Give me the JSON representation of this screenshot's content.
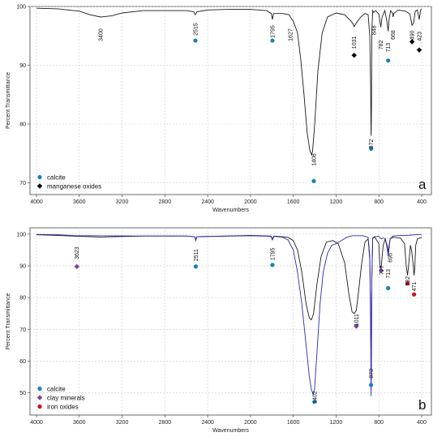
{
  "colors": {
    "calcite": "#1a7fc1",
    "manganese": "#000000",
    "clay": "#7b3fa0",
    "iron": "#c8141e",
    "curve_black": "#1a1a1a",
    "curve_blue": "#2a2ab0",
    "grid": "#c9c9c9"
  },
  "chart_data": [
    {
      "type": "line",
      "panel_label": "a",
      "xlabel": "Wavenumbers",
      "ylabel": "Percent Transmittance",
      "xlim": [
        4000,
        400
      ],
      "ylim": [
        68,
        100
      ],
      "x_reversed": true,
      "grid": true,
      "xticks": [
        "4000",
        "3600",
        "3200",
        "2800",
        "2400",
        "2000",
        "1600",
        "1200",
        "800",
        "400"
      ],
      "yticks": [
        "70",
        "80",
        "90",
        "100"
      ],
      "series": [
        {
          "color": "#1a1a1a",
          "points": [
            [
              4000,
              99.7
            ],
            [
              3800,
              99.6
            ],
            [
              3600,
              99.2
            ],
            [
              3500,
              98.6
            ],
            [
              3400,
              98.2
            ],
            [
              3300,
              98.4
            ],
            [
              3200,
              98.9
            ],
            [
              3000,
              99.3
            ],
            [
              2800,
              99.3
            ],
            [
              2600,
              99.3
            ],
            [
              2530,
              99.1
            ],
            [
              2515,
              98.6
            ],
            [
              2500,
              99.1
            ],
            [
              2400,
              99.4
            ],
            [
              2200,
              99.5
            ],
            [
              2000,
              99.5
            ],
            [
              1850,
              99.3
            ],
            [
              1805,
              98.8
            ],
            [
              1795,
              97.8
            ],
            [
              1785,
              98.8
            ],
            [
              1700,
              98.8
            ],
            [
              1640,
              98.6
            ],
            [
              1627,
              98.2
            ],
            [
              1600,
              97.5
            ],
            [
              1560,
              95.5
            ],
            [
              1530,
              91
            ],
            [
              1500,
              85
            ],
            [
              1470,
              78.5
            ],
            [
              1445,
              75.5
            ],
            [
              1430,
              74.8
            ],
            [
              1420,
              75.3
            ],
            [
              1400,
              80
            ],
            [
              1370,
              89
            ],
            [
              1330,
              95.5
            ],
            [
              1280,
              98.2
            ],
            [
              1200,
              98.9
            ],
            [
              1120,
              98.6
            ],
            [
              1060,
              97.5
            ],
            [
              1040,
              97
            ],
            [
              1031,
              96.6
            ],
            [
              1010,
              97.2
            ],
            [
              970,
              98.2
            ],
            [
              930,
              98.8
            ],
            [
              900,
              98.6
            ],
            [
              885,
              95
            ],
            [
              877,
              86
            ],
            [
              874,
              79
            ],
            [
              872,
              78
            ],
            [
              869,
              83
            ],
            [
              865,
              96
            ],
            [
              858,
              99.3
            ],
            [
              848,
              99
            ],
            [
              830,
              99.3
            ],
            [
              800,
              98.7
            ],
            [
              782,
              96.5
            ],
            [
              770,
              98.2
            ],
            [
              745,
              99.3
            ],
            [
              725,
              97.5
            ],
            [
              713,
              95.8
            ],
            [
              705,
              97.8
            ],
            [
              690,
              99.3
            ],
            [
              670,
              98.8
            ],
            [
              668,
              98.2
            ],
            [
              660,
              98.8
            ],
            [
              620,
              99.4
            ],
            [
              550,
              99.2
            ],
            [
              510,
              98.7
            ],
            [
              490,
              96.8
            ],
            [
              475,
              97.2
            ],
            [
              460,
              99.2
            ],
            [
              440,
              99.4
            ],
            [
              423,
              97.8
            ],
            [
              410,
              99.4
            ],
            [
              400,
              99.6
            ]
          ]
        }
      ],
      "peaks": [
        {
          "label": "3400",
          "x": 3400
        },
        {
          "label": "2515",
          "x": 2515
        },
        {
          "label": "1795",
          "x": 1795
        },
        {
          "label": "1627",
          "x": 1627
        },
        {
          "label": "1408",
          "x": 1408
        },
        {
          "label": "1031",
          "x": 1031
        },
        {
          "label": "872",
          "x": 872
        },
        {
          "label": "848",
          "x": 848
        },
        {
          "label": "782",
          "x": 782
        },
        {
          "label": "713",
          "x": 713
        },
        {
          "label": "668",
          "x": 668
        },
        {
          "label": "490",
          "x": 490
        },
        {
          "label": "423",
          "x": 423
        }
      ],
      "markers": [
        {
          "group": "calcite",
          "x": 2515,
          "y": 94.2
        },
        {
          "group": "calcite",
          "x": 1795,
          "y": 94.2
        },
        {
          "group": "calcite",
          "x": 1408,
          "y": 70.3
        },
        {
          "group": "calcite",
          "x": 872,
          "y": 75.8
        },
        {
          "group": "calcite",
          "x": 713,
          "y": 90.8
        },
        {
          "group": "manganese",
          "x": 1031,
          "y": 91.7
        },
        {
          "group": "manganese",
          "x": 490,
          "y": 94.0
        },
        {
          "group": "manganese",
          "x": 423,
          "y": 92.6
        }
      ],
      "legend": [
        {
          "group": "calcite",
          "label": "calcite"
        },
        {
          "group": "manganese",
          "label": "manganese oxides"
        }
      ]
    },
    {
      "type": "line",
      "panel_label": "b",
      "xlabel": "Wavenumbers",
      "ylabel": "Percent Transmittance",
      "xlim": [
        4000,
        400
      ],
      "ylim": [
        43,
        102
      ],
      "x_reversed": true,
      "grid": true,
      "xticks": [
        "4000",
        "3600",
        "3200",
        "2800",
        "2400",
        "2000",
        "1600",
        "1200",
        "800",
        "400"
      ],
      "yticks": [
        "50",
        "60",
        "70",
        "80",
        "90",
        "100"
      ],
      "series": [
        {
          "color": "#1a1a1a",
          "points": [
            [
              4000,
              99.8
            ],
            [
              3800,
              99.6
            ],
            [
              3600,
              99.3
            ],
            [
              3400,
              99.1
            ],
            [
              3000,
              99.4
            ],
            [
              2600,
              99.4
            ],
            [
              2520,
              99.2
            ],
            [
              2511,
              98.2
            ],
            [
              2500,
              99.2
            ],
            [
              2000,
              99.6
            ],
            [
              1810,
              99.4
            ],
            [
              1795,
              98.5
            ],
            [
              1780,
              99.4
            ],
            [
              1650,
              99.0
            ],
            [
              1600,
              98
            ],
            [
              1560,
              95
            ],
            [
              1520,
              88
            ],
            [
              1480,
              78
            ],
            [
              1450,
              73.5
            ],
            [
              1430,
              73
            ],
            [
              1410,
              75
            ],
            [
              1380,
              84
            ],
            [
              1340,
              93
            ],
            [
              1290,
              97.5
            ],
            [
              1230,
              98
            ],
            [
              1180,
              97
            ],
            [
              1120,
              91
            ],
            [
              1080,
              81
            ],
            [
              1050,
              75.5
            ],
            [
              1030,
              75
            ],
            [
              1011,
              76
            ],
            [
              990,
              82
            ],
            [
              960,
              91
            ],
            [
              930,
              97.5
            ],
            [
              900,
              98.5
            ],
            [
              885,
              92
            ],
            [
              877,
              75
            ],
            [
              874,
              62
            ],
            [
              873,
              58
            ],
            [
              870,
              64
            ],
            [
              866,
              85
            ],
            [
              858,
              98.5
            ],
            [
              840,
              99.2
            ],
            [
              800,
              97
            ],
            [
              795,
              93
            ],
            [
              789,
              90
            ],
            [
              779,
              89
            ],
            [
              772,
              92
            ],
            [
              760,
              96.5
            ],
            [
              740,
              98.5
            ],
            [
              720,
              96
            ],
            [
              713,
              94
            ],
            [
              705,
              96.5
            ],
            [
              695,
              98.5
            ],
            [
              670,
              99
            ],
            [
              600,
              98.8
            ],
            [
              560,
              97
            ],
            [
              545,
              90
            ],
            [
              532,
              87
            ],
            [
              520,
              91
            ],
            [
              505,
              96.5
            ],
            [
              495,
              95
            ],
            [
              478,
              90
            ],
            [
              471,
              87
            ],
            [
              465,
              89
            ],
            [
              455,
              96.5
            ],
            [
              440,
              98.5
            ],
            [
              400,
              99
            ]
          ]
        },
        {
          "color": "#2a2ab0",
          "points": [
            [
              4000,
              99.9
            ],
            [
              3800,
              99.8
            ],
            [
              3623,
              99.5
            ],
            [
              3500,
              99.5
            ],
            [
              3000,
              99.4
            ],
            [
              2600,
              99.4
            ],
            [
              2520,
              99.2
            ],
            [
              2511,
              98
            ],
            [
              2500,
              99.2
            ],
            [
              2000,
              99.5
            ],
            [
              1810,
              99.3
            ],
            [
              1795,
              98.2
            ],
            [
              1780,
              99.3
            ],
            [
              1700,
              99
            ],
            [
              1650,
              98.2
            ],
            [
              1600,
              95
            ],
            [
              1560,
              88
            ],
            [
              1520,
              78
            ],
            [
              1480,
              65
            ],
            [
              1450,
              55
            ],
            [
              1430,
              51
            ],
            [
              1415,
              49.5
            ],
            [
              1402,
              51
            ],
            [
              1380,
              62
            ],
            [
              1350,
              78
            ],
            [
              1320,
              88
            ],
            [
              1280,
              94
            ],
            [
              1240,
              96.5
            ],
            [
              1200,
              97
            ],
            [
              1150,
              98
            ],
            [
              1100,
              99
            ],
            [
              1050,
              99.5
            ],
            [
              1000,
              99.5
            ],
            [
              950,
              99.5
            ],
            [
              900,
              99
            ],
            [
              885,
              93
            ],
            [
              877,
              70
            ],
            [
              874,
              52
            ],
            [
              873,
              49
            ],
            [
              870,
              56
            ],
            [
              866,
              85
            ],
            [
              858,
              98.8
            ],
            [
              840,
              99.2
            ],
            [
              800,
              99.3
            ],
            [
              780,
              98.5
            ],
            [
              760,
              98.8
            ],
            [
              740,
              98.5
            ],
            [
              720,
              95
            ],
            [
              713,
              93
            ],
            [
              705,
              95.5
            ],
            [
              695,
              98.5
            ],
            [
              670,
              99.4
            ],
            [
              600,
              99.6
            ],
            [
              540,
              99.6
            ],
            [
              500,
              99.7
            ],
            [
              450,
              99.8
            ],
            [
              400,
              99.9
            ]
          ]
        }
      ],
      "peaks": [
        {
          "label": "3623",
          "x": 3623
        },
        {
          "label": "2511",
          "x": 2511
        },
        {
          "label": "1795",
          "x": 1795
        },
        {
          "label": "1402",
          "x": 1402
        },
        {
          "label": "1011",
          "x": 1011
        },
        {
          "label": "873",
          "x": 873
        },
        {
          "label": "777",
          "x": 777
        },
        {
          "label": "713",
          "x": 713
        },
        {
          "label": "696",
          "x": 696
        },
        {
          "label": "532",
          "x": 532
        },
        {
          "label": "471",
          "x": 471
        }
      ],
      "markers": [
        {
          "group": "clay",
          "x": 3623,
          "y": 89.8
        },
        {
          "group": "calcite",
          "x": 2511,
          "y": 89.8
        },
        {
          "group": "calcite",
          "x": 1795,
          "y": 90.3
        },
        {
          "group": "calcite",
          "x": 1402,
          "y": 47.2
        },
        {
          "group": "clay",
          "x": 1011,
          "y": 71.0
        },
        {
          "group": "calcite",
          "x": 873,
          "y": 52.5
        },
        {
          "group": "clay",
          "x": 777,
          "y": 88.5
        },
        {
          "group": "calcite",
          "x": 713,
          "y": 83.0
        },
        {
          "group": "iron",
          "x": 532,
          "y": 84.5
        },
        {
          "group": "iron",
          "x": 471,
          "y": 81.0
        }
      ],
      "legend": [
        {
          "group": "calcite",
          "label": "calcite"
        },
        {
          "group": "clay",
          "label": "clay minerals"
        },
        {
          "group": "iron",
          "label": "iron oxides"
        }
      ]
    }
  ]
}
